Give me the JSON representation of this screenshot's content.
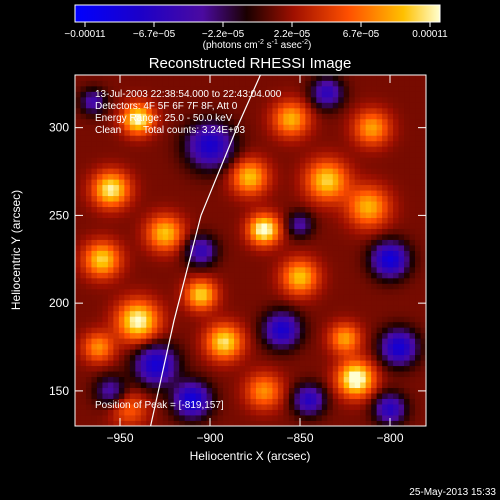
{
  "chart_data": {
    "type": "heatmap",
    "title": "Reconstructed RHESSI Image",
    "xlabel": "Heliocentric X (arcsec)",
    "ylabel": "Heliocentric Y (arcsec)",
    "xlim": [
      -975,
      -780
    ],
    "ylim": [
      130,
      330
    ],
    "xticks": [
      -950,
      -900,
      -850,
      -800
    ],
    "yticks": [
      150,
      200,
      250,
      300
    ],
    "colorbar": {
      "ticks": [
        "-0.00011",
        "-6.7e-05",
        "-2.2e-05",
        "2.2e-05",
        "6.7e-05",
        "0.00011"
      ],
      "unit_label": "(photons cm",
      "unit_sup1": "-2",
      "unit_mid": " s",
      "unit_sup2": "-1",
      "unit_tail": " asec",
      "unit_sup3": "-2",
      "unit_end": ")"
    },
    "annotations": [
      "13-Jul-2003 22:38:54.000 to 22:43:04.000",
      "Detectors: 4F 5F 6F 7F 8F, Att 0",
      "Energy Range: 25.0 - 50.0 keV",
      "Clean",
      "Total counts: 3.24E+03"
    ],
    "peak_text": "Position of Peak = [-819,157]",
    "limb_line": [
      [
        -933,
        130
      ],
      [
        -920,
        190
      ],
      [
        -905,
        250
      ],
      [
        -885,
        300
      ],
      [
        -872,
        330
      ]
    ],
    "blobs": [
      {
        "x": -940,
        "y": 305,
        "v": 0.9,
        "s": 6
      },
      {
        "x": -955,
        "y": 265,
        "v": 0.85,
        "s": 7
      },
      {
        "x": -960,
        "y": 225,
        "v": 0.75,
        "s": 7
      },
      {
        "x": -940,
        "y": 190,
        "v": 0.9,
        "s": 8
      },
      {
        "x": -962,
        "y": 175,
        "v": 0.55,
        "s": 6
      },
      {
        "x": -925,
        "y": 240,
        "v": 0.7,
        "s": 7
      },
      {
        "x": -905,
        "y": 205,
        "v": 0.75,
        "s": 6
      },
      {
        "x": -892,
        "y": 178,
        "v": 0.8,
        "s": 7
      },
      {
        "x": -870,
        "y": 242,
        "v": 0.95,
        "s": 6
      },
      {
        "x": -878,
        "y": 272,
        "v": 0.7,
        "s": 7
      },
      {
        "x": -855,
        "y": 305,
        "v": 0.65,
        "s": 7
      },
      {
        "x": -835,
        "y": 270,
        "v": 0.75,
        "s": 8
      },
      {
        "x": -812,
        "y": 255,
        "v": 0.65,
        "s": 8
      },
      {
        "x": -810,
        "y": 300,
        "v": 0.6,
        "s": 7
      },
      {
        "x": -850,
        "y": 215,
        "v": 0.7,
        "s": 7
      },
      {
        "x": -825,
        "y": 180,
        "v": 0.6,
        "s": 6
      },
      {
        "x": -819,
        "y": 157,
        "v": 1.0,
        "s": 7
      },
      {
        "x": -870,
        "y": 150,
        "v": 0.55,
        "s": 7
      },
      {
        "x": -945,
        "y": 140,
        "v": 0.4,
        "s": 7
      },
      {
        "x": -930,
        "y": 165,
        "v": -0.85,
        "s": 8
      },
      {
        "x": -910,
        "y": 145,
        "v": -0.9,
        "s": 7
      },
      {
        "x": -900,
        "y": 290,
        "v": -0.8,
        "s": 9
      },
      {
        "x": -905,
        "y": 230,
        "v": -0.6,
        "s": 6
      },
      {
        "x": -860,
        "y": 185,
        "v": -0.8,
        "s": 7
      },
      {
        "x": -845,
        "y": 145,
        "v": -0.7,
        "s": 6
      },
      {
        "x": -800,
        "y": 225,
        "v": -0.9,
        "s": 7
      },
      {
        "x": -795,
        "y": 175,
        "v": -0.85,
        "s": 7
      },
      {
        "x": -800,
        "y": 140,
        "v": -0.7,
        "s": 6
      },
      {
        "x": -955,
        "y": 150,
        "v": -0.5,
        "s": 6
      },
      {
        "x": -835,
        "y": 320,
        "v": -0.65,
        "s": 6
      },
      {
        "x": -965,
        "y": 315,
        "v": -0.5,
        "s": 5
      },
      {
        "x": -850,
        "y": 245,
        "v": -0.45,
        "s": 5
      }
    ]
  },
  "footer": {
    "timestamp": "25-May-2013 15:33"
  }
}
